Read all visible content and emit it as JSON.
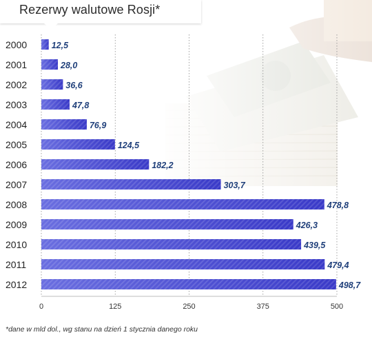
{
  "chart_data": {
    "type": "bar",
    "orientation": "horizontal",
    "title": "Rezerwy walutowe Rosji*",
    "categories": [
      "2000",
      "2001",
      "2002",
      "2003",
      "2004",
      "2005",
      "2006",
      "2007",
      "2008",
      "2009",
      "2010",
      "2011",
      "2012"
    ],
    "values": [
      12.5,
      28.0,
      36.6,
      47.8,
      76.9,
      124.5,
      182.2,
      303.7,
      478.8,
      426.3,
      439.5,
      479.4,
      498.7
    ],
    "value_labels": [
      "12,5",
      "28,0",
      "36,6",
      "47,8",
      "76,9",
      "124,5",
      "182,2",
      "303,7",
      "478,8",
      "426,3",
      "439,5",
      "479,4",
      "498,7"
    ],
    "xlim": [
      0,
      500
    ],
    "xticks": [
      0,
      125,
      250,
      375,
      500
    ],
    "grid": true,
    "xlabel": "",
    "ylabel": "",
    "footnote": "*dane w mld dol., wg stanu na dzień 1 stycznia danego roku",
    "colors": {
      "bar_light": "#6a6ee0",
      "bar_dark": "#3a3ac8",
      "label": "#1f3f7a"
    }
  }
}
